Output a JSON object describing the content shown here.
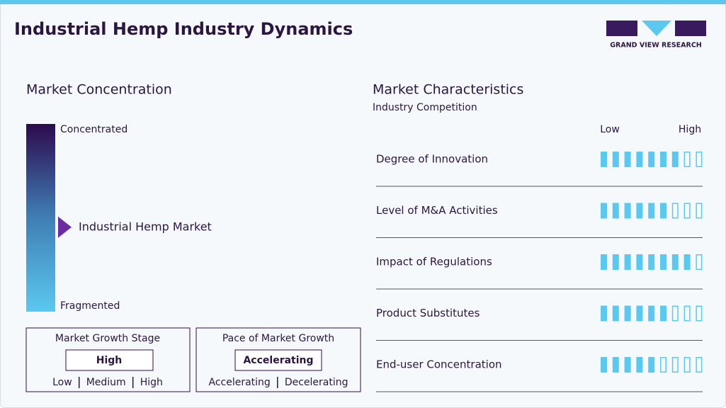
{
  "header": {
    "title": "Industrial Hemp Industry Dynamics",
    "logo_text": "GRAND VIEW RESEARCH"
  },
  "concentration": {
    "title": "Market Concentration",
    "top_label": "Concentrated",
    "bottom_label": "Fragmented",
    "marker_label": "Industrial Hemp Market",
    "marker_position": 45
  },
  "growth_stage": {
    "title": "Market Growth Stage",
    "value": "High",
    "options": [
      "Low",
      "Medium",
      "High"
    ]
  },
  "growth_pace": {
    "title": "Pace of Market Growth",
    "value": "Accelerating",
    "options": [
      "Accelerating",
      "Decelerating"
    ]
  },
  "characteristics": {
    "title": "Market Characteristics",
    "subtitle": "Industry Competition",
    "low_label": "Low",
    "high_label": "High",
    "scale_max": 9,
    "rows": [
      {
        "name": "Degree of Innovation",
        "value": 7
      },
      {
        "name": "Level of M&A Activities",
        "value": 6
      },
      {
        "name": "Impact of Regulations",
        "value": 8
      },
      {
        "name": "Product Substitutes",
        "value": 6
      },
      {
        "name": "End-user Concentration",
        "value": 5
      }
    ]
  }
}
